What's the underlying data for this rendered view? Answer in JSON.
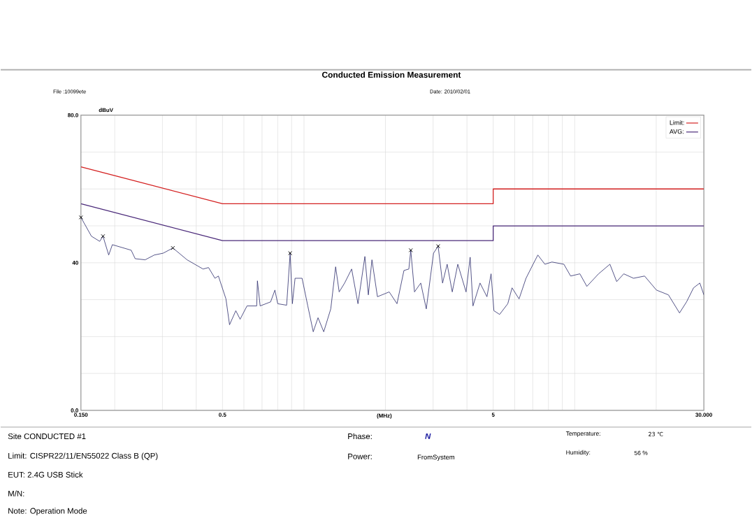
{
  "chart_data": {
    "type": "line",
    "title": "Conducted Emission Measurement",
    "xlabel": "(MHz)",
    "ylabel": "dBuV",
    "log": "x",
    "grid": true,
    "legend": "top right",
    "xlim": [
      0.15,
      30
    ],
    "ylim": [
      0,
      80
    ],
    "xticks": [
      {
        "value": 0.15,
        "label": "0.150"
      },
      {
        "value": 0.2,
        "label": null
      },
      {
        "value": 0.3,
        "label": null
      },
      {
        "value": 0.4,
        "label": null
      },
      0.5,
      {
        "value": 0.6,
        "label": null
      },
      {
        "value": 0.7,
        "label": null
      },
      {
        "value": 0.8,
        "label": null
      },
      {
        "value": 0.9,
        "label": null
      },
      {
        "value": 1,
        "label": null
      },
      {
        "value": 2,
        "label": null
      },
      {
        "value": 3,
        "label": null
      },
      {
        "value": 4,
        "label": null
      },
      5,
      {
        "value": 6,
        "label": null
      },
      {
        "value": 7,
        "label": null
      },
      {
        "value": 8,
        "label": null
      },
      {
        "value": 9,
        "label": null
      },
      {
        "value": 10,
        "label": null
      },
      {
        "value": 20,
        "label": null
      },
      {
        "value": 30,
        "label": "30.000"
      }
    ],
    "yticks": [
      {
        "value": 0,
        "label": "0.0"
      },
      {
        "value": 10,
        "label": null
      },
      {
        "value": 20,
        "label": null
      },
      {
        "value": 30,
        "label": null
      },
      40,
      {
        "value": 50,
        "label": null
      },
      {
        "value": 60,
        "label": null
      },
      {
        "value": 70,
        "label": null
      },
      {
        "value": 80,
        "label": "80.0"
      }
    ],
    "series": [
      {
        "name": "Limit:",
        "color": "#d42020",
        "x": [
          0.15,
          0.5,
          5,
          5,
          30
        ],
        "values": [
          66,
          56,
          56,
          60,
          60
        ]
      },
      {
        "name": "AVG:",
        "color": "#4b2a7a",
        "x": [
          0.15,
          0.5,
          5,
          5,
          30
        ],
        "values": [
          56,
          46,
          46,
          50,
          50
        ]
      },
      {
        "color": "#2b2b6b",
        "x": [
          0.15,
          0.164,
          0.176,
          0.181,
          0.19,
          0.196,
          0.23,
          0.238,
          0.259,
          0.28,
          0.302,
          0.328,
          0.37,
          0.424,
          0.444,
          0.469,
          0.483,
          0.515,
          0.531,
          0.56,
          0.581,
          0.616,
          0.669,
          0.673,
          0.689,
          0.753,
          0.781,
          0.8,
          0.863,
          0.889,
          0.906,
          0.927,
          0.984,
          1.033,
          1.082,
          1.127,
          1.183,
          1.256,
          1.309,
          1.349,
          1.413,
          1.5,
          1.583,
          1.679,
          1.729,
          1.783,
          1.868,
          2.065,
          2.206,
          2.34,
          2.44,
          2.48,
          2.56,
          2.7,
          2.83,
          3.01,
          3.13,
          3.25,
          3.38,
          3.53,
          3.7,
          3.97,
          4.11,
          4.21,
          4.47,
          4.74,
          4.91,
          5.03,
          5.28,
          5.66,
          5.87,
          6.23,
          6.61,
          7.02,
          7.31,
          7.76,
          8.24,
          9.12,
          9.66,
          10.45,
          11.09,
          12.25,
          13.49,
          14.29,
          15.18,
          16.49,
          18.12,
          20.04,
          22.19,
          24.39,
          25.89,
          27.48,
          28.98,
          30.0
        ],
        "values": [
          52.3,
          47.2,
          45.8,
          47.2,
          42.1,
          44.9,
          43.4,
          41.1,
          40.8,
          42.1,
          42.6,
          44.0,
          40.8,
          38.3,
          38.7,
          35.8,
          36.4,
          30.2,
          23.2,
          27.0,
          24.7,
          28.3,
          28.3,
          35.1,
          28.3,
          29.4,
          32.6,
          28.9,
          28.5,
          42.6,
          28.9,
          35.8,
          35.8,
          28.3,
          21.3,
          25.1,
          21.3,
          27.5,
          38.9,
          32.1,
          34.5,
          38.3,
          28.9,
          41.7,
          31.3,
          40.8,
          30.8,
          32.1,
          28.9,
          37.9,
          38.3,
          43.4,
          32.1,
          34.5,
          27.5,
          42.6,
          44.5,
          34.5,
          39.6,
          32.1,
          39.6,
          32.1,
          41.5,
          28.3,
          34.5,
          30.8,
          37.0,
          27.0,
          26.0,
          28.9,
          33.2,
          30.2,
          35.8,
          39.6,
          42.1,
          39.6,
          40.2,
          39.6,
          36.4,
          37.0,
          33.6,
          37.0,
          39.6,
          34.9,
          37.0,
          35.8,
          36.4,
          32.6,
          31.3,
          26.4,
          29.4,
          33.2,
          34.5,
          31.3
        ]
      },
      {
        "type": "scatter",
        "marker": "cross",
        "color": "#000000",
        "x": [
          0.15,
          0.181,
          0.328,
          0.889,
          2.48,
          3.13
        ],
        "values": [
          52.3,
          47.2,
          44.0,
          42.6,
          43.4,
          44.5
        ]
      }
    ],
    "annotations": [
      "File :10099ete",
      "Date: 2010/02/01",
      "Site  CONDUCTED #1",
      "Limit: CISPR22/11/EN55022 Class B (QP)",
      "EUT: 2.4G USB Stick",
      "M/N:",
      "Note: Operation Mode",
      "Phase:",
      "N",
      "Power:",
      "FromSystem",
      "Temperature:",
      "23 ℃",
      "Humidity:",
      "56 %"
    ]
  }
}
